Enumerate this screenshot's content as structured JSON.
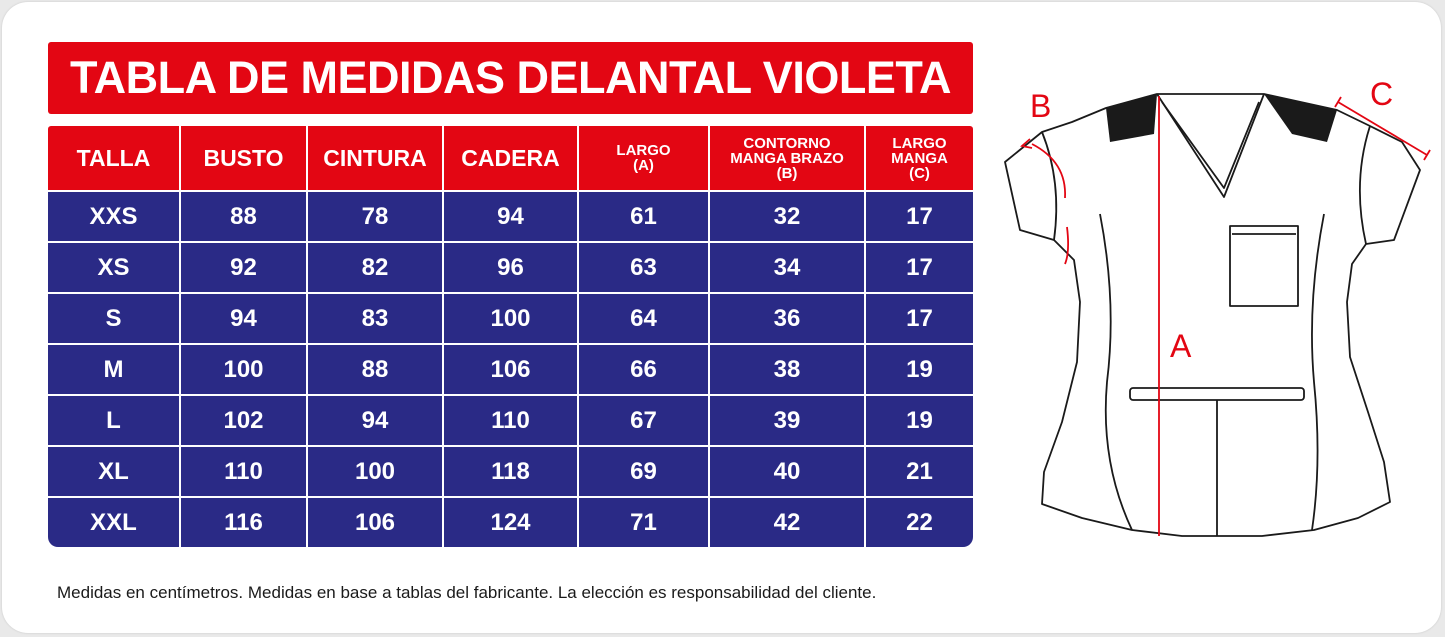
{
  "title": "TABLA DE MEDIDAS DELANTAL VIOLETA",
  "table": {
    "headers": [
      {
        "line1": "TALLA",
        "line2": "",
        "line3": ""
      },
      {
        "line1": "BUSTO",
        "line2": "",
        "line3": ""
      },
      {
        "line1": "CINTURA",
        "line2": "",
        "line3": ""
      },
      {
        "line1": "CADERA",
        "line2": "",
        "line3": ""
      },
      {
        "line1": "LARGO",
        "line2": "(A)",
        "line3": ""
      },
      {
        "line1": "CONTORNO",
        "line2": "MANGA BRAZO",
        "line3": "(B)"
      },
      {
        "line1": "LARGO",
        "line2": "MANGA",
        "line3": "(C)"
      }
    ],
    "rows": [
      [
        "XXS",
        "88",
        "78",
        "94",
        "61",
        "32",
        "17"
      ],
      [
        "XS",
        "92",
        "82",
        "96",
        "63",
        "34",
        "17"
      ],
      [
        "S",
        "94",
        "83",
        "100",
        "64",
        "36",
        "17"
      ],
      [
        "M",
        "100",
        "88",
        "106",
        "66",
        "38",
        "19"
      ],
      [
        "L",
        "102",
        "94",
        "110",
        "67",
        "39",
        "19"
      ],
      [
        "XL",
        "110",
        "100",
        "118",
        "69",
        "40",
        "21"
      ],
      [
        "XXL",
        "116",
        "106",
        "124",
        "71",
        "42",
        "22"
      ]
    ]
  },
  "footnote": "Medidas en centímetros. Medidas en base a tablas del fabricante. La elección es responsabilidad del cliente.",
  "diagram": {
    "label_a": "A",
    "label_b": "B",
    "label_c": "C"
  },
  "colors": {
    "red": "#e30613",
    "navy": "#2a2a86",
    "white": "#ffffff",
    "outline": "#1a1a1a"
  },
  "icons": [
    "scrub-top-diagram"
  ]
}
